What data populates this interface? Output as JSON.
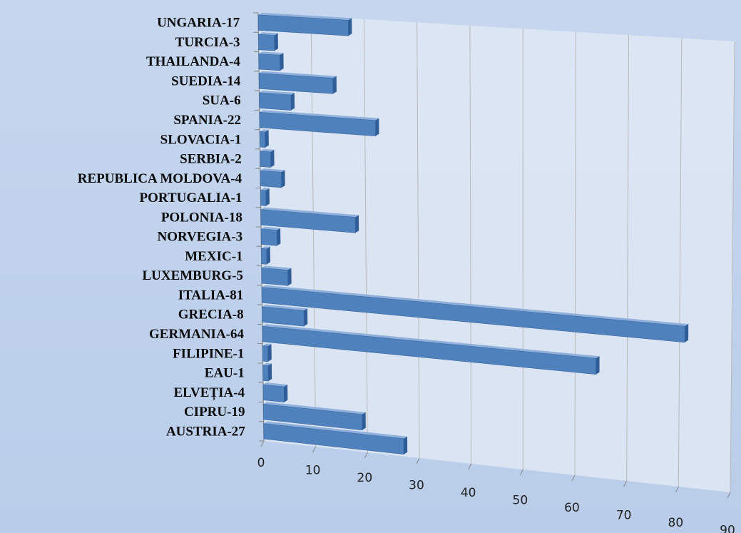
{
  "chart_data": {
    "type": "bar",
    "orientation": "horizontal",
    "style": "3d-perspective",
    "categories": [
      "AUSTRIA-27",
      "CIPRU-19",
      "ELVEȚIA-4",
      "EAU-1",
      "FILIPINE-1",
      "GERMANIA-64",
      "GRECIA-8",
      "ITALIA-81",
      "LUXEMBURG-5",
      "MEXIC-1",
      "NORVEGIA-3",
      "POLONIA-18",
      "PORTUGALIA-1",
      "REPUBLICA MOLDOVA-4",
      "SERBIA-2",
      "SLOVACIA-1",
      "SPANIA-22",
      "SUA-6",
      "SUEDIA-14",
      "THAILANDA-4",
      "TURCIA-3",
      "UNGARIA-17"
    ],
    "values": [
      27,
      19,
      4,
      1,
      1,
      64,
      8,
      81,
      5,
      1,
      3,
      18,
      1,
      4,
      2,
      1,
      22,
      6,
      14,
      4,
      3,
      17
    ],
    "x_ticks": [
      "0",
      "10",
      "20",
      "30",
      "40",
      "50",
      "60",
      "70",
      "80",
      "90"
    ],
    "xlim": [
      0,
      90
    ],
    "grid": true,
    "legend": "none",
    "colors": {
      "bar": "#4f81bd",
      "bar_top": "#8fb0db",
      "bar_end": "#2f5d97",
      "plot_bg": "#dfe7f3",
      "grid": "#b8b8b8"
    }
  }
}
